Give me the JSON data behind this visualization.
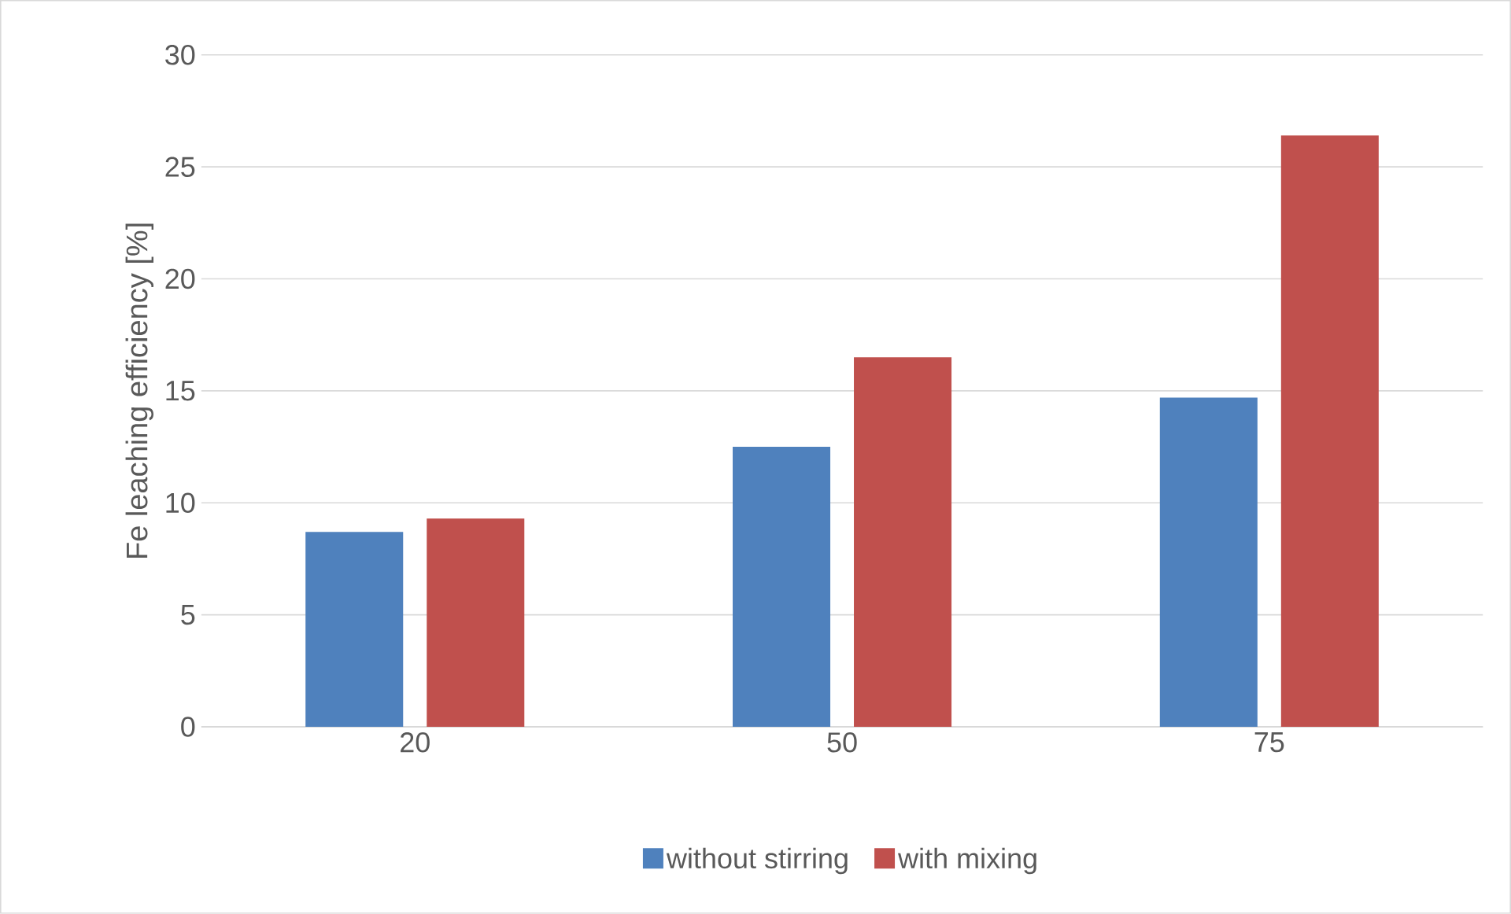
{
  "chart_data": {
    "type": "bar",
    "ylabel": "Fe leaching efficiency [%]",
    "categories": [
      "20",
      "50",
      "75"
    ],
    "series": [
      {
        "name": "without stirring",
        "color": "#4f81bd",
        "values": [
          8.7,
          12.5,
          14.7
        ]
      },
      {
        "name": "with mixing",
        "color": "#c0504d",
        "values": [
          9.3,
          16.5,
          26.4
        ]
      }
    ],
    "ylim": [
      0,
      30
    ],
    "yticks": [
      0,
      5,
      10,
      15,
      20,
      25,
      30
    ],
    "grid": "y",
    "legend": "bottom"
  }
}
